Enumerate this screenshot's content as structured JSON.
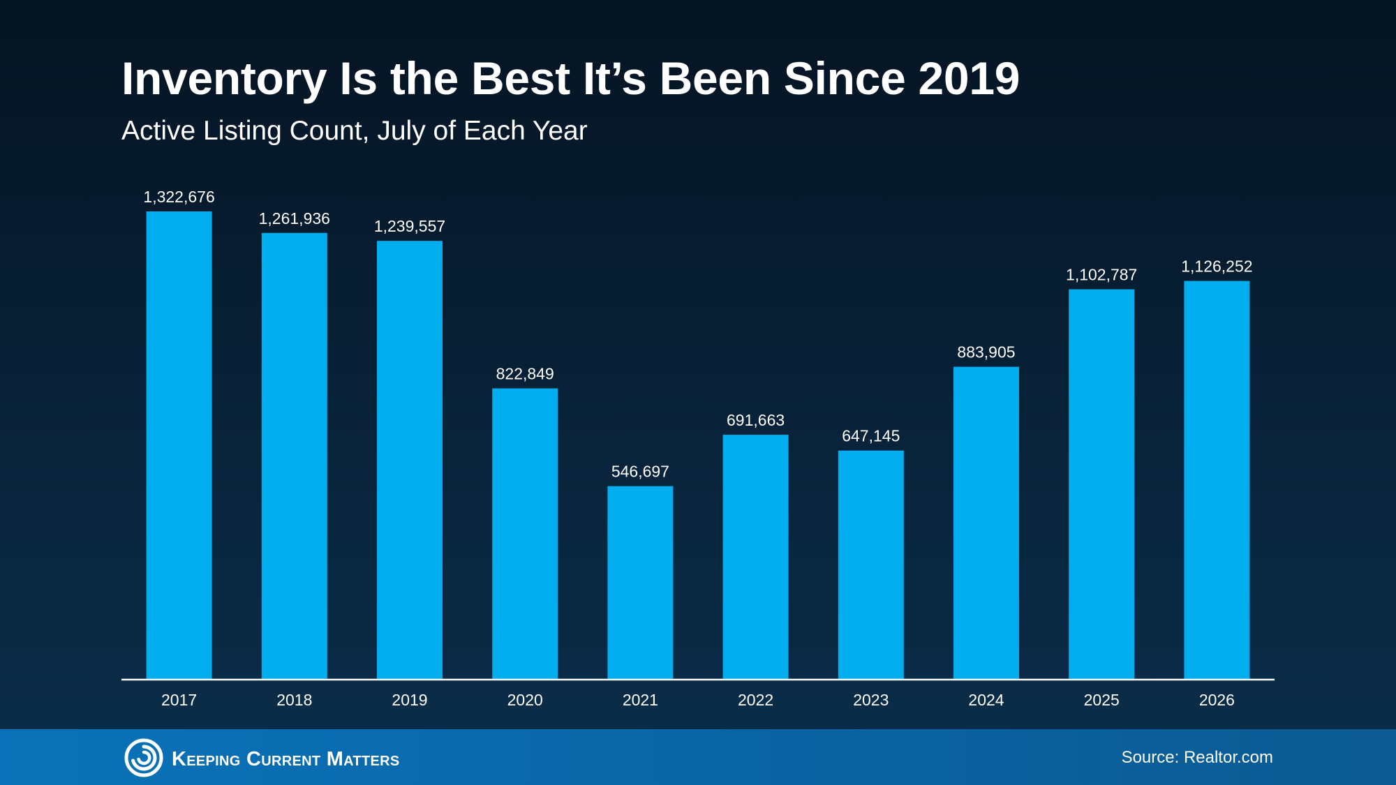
{
  "slide": {
    "title": "Inventory Is the Best It’s Been Since 2019",
    "subtitle": "Active Listing Count, July of Each Year"
  },
  "footer": {
    "brand": "Keeping Current Matters",
    "brand_logo": "kcm-swirl-logo",
    "source": "Source: Realtor.com"
  },
  "colors": {
    "bar": "#00aeef",
    "background": "#071d31",
    "footer": "#0a67a8",
    "text": "#ffffff"
  },
  "chart_data": {
    "type": "bar",
    "title": "Inventory Is the Best It’s Been Since 2019",
    "subtitle": "Active Listing Count, July of Each Year",
    "xlabel": "",
    "ylabel": "",
    "categories": [
      "2017",
      "2018",
      "2019",
      "2020",
      "2021",
      "2022",
      "2023",
      "2024",
      "2025",
      "2026"
    ],
    "values": [
      1322676,
      1261936,
      1239557,
      822849,
      546697,
      691663,
      647145,
      883905,
      1102787,
      1126252
    ],
    "value_labels": [
      "1,322,676",
      "1,261,936",
      "1,239,557",
      "822,849",
      "546,697",
      "691,663",
      "647,145",
      "883,905",
      "1,102,787",
      "1,126,252"
    ],
    "ylim": [
      0,
      1322676
    ],
    "grid": false,
    "legend": "none",
    "axis_visible": false
  }
}
